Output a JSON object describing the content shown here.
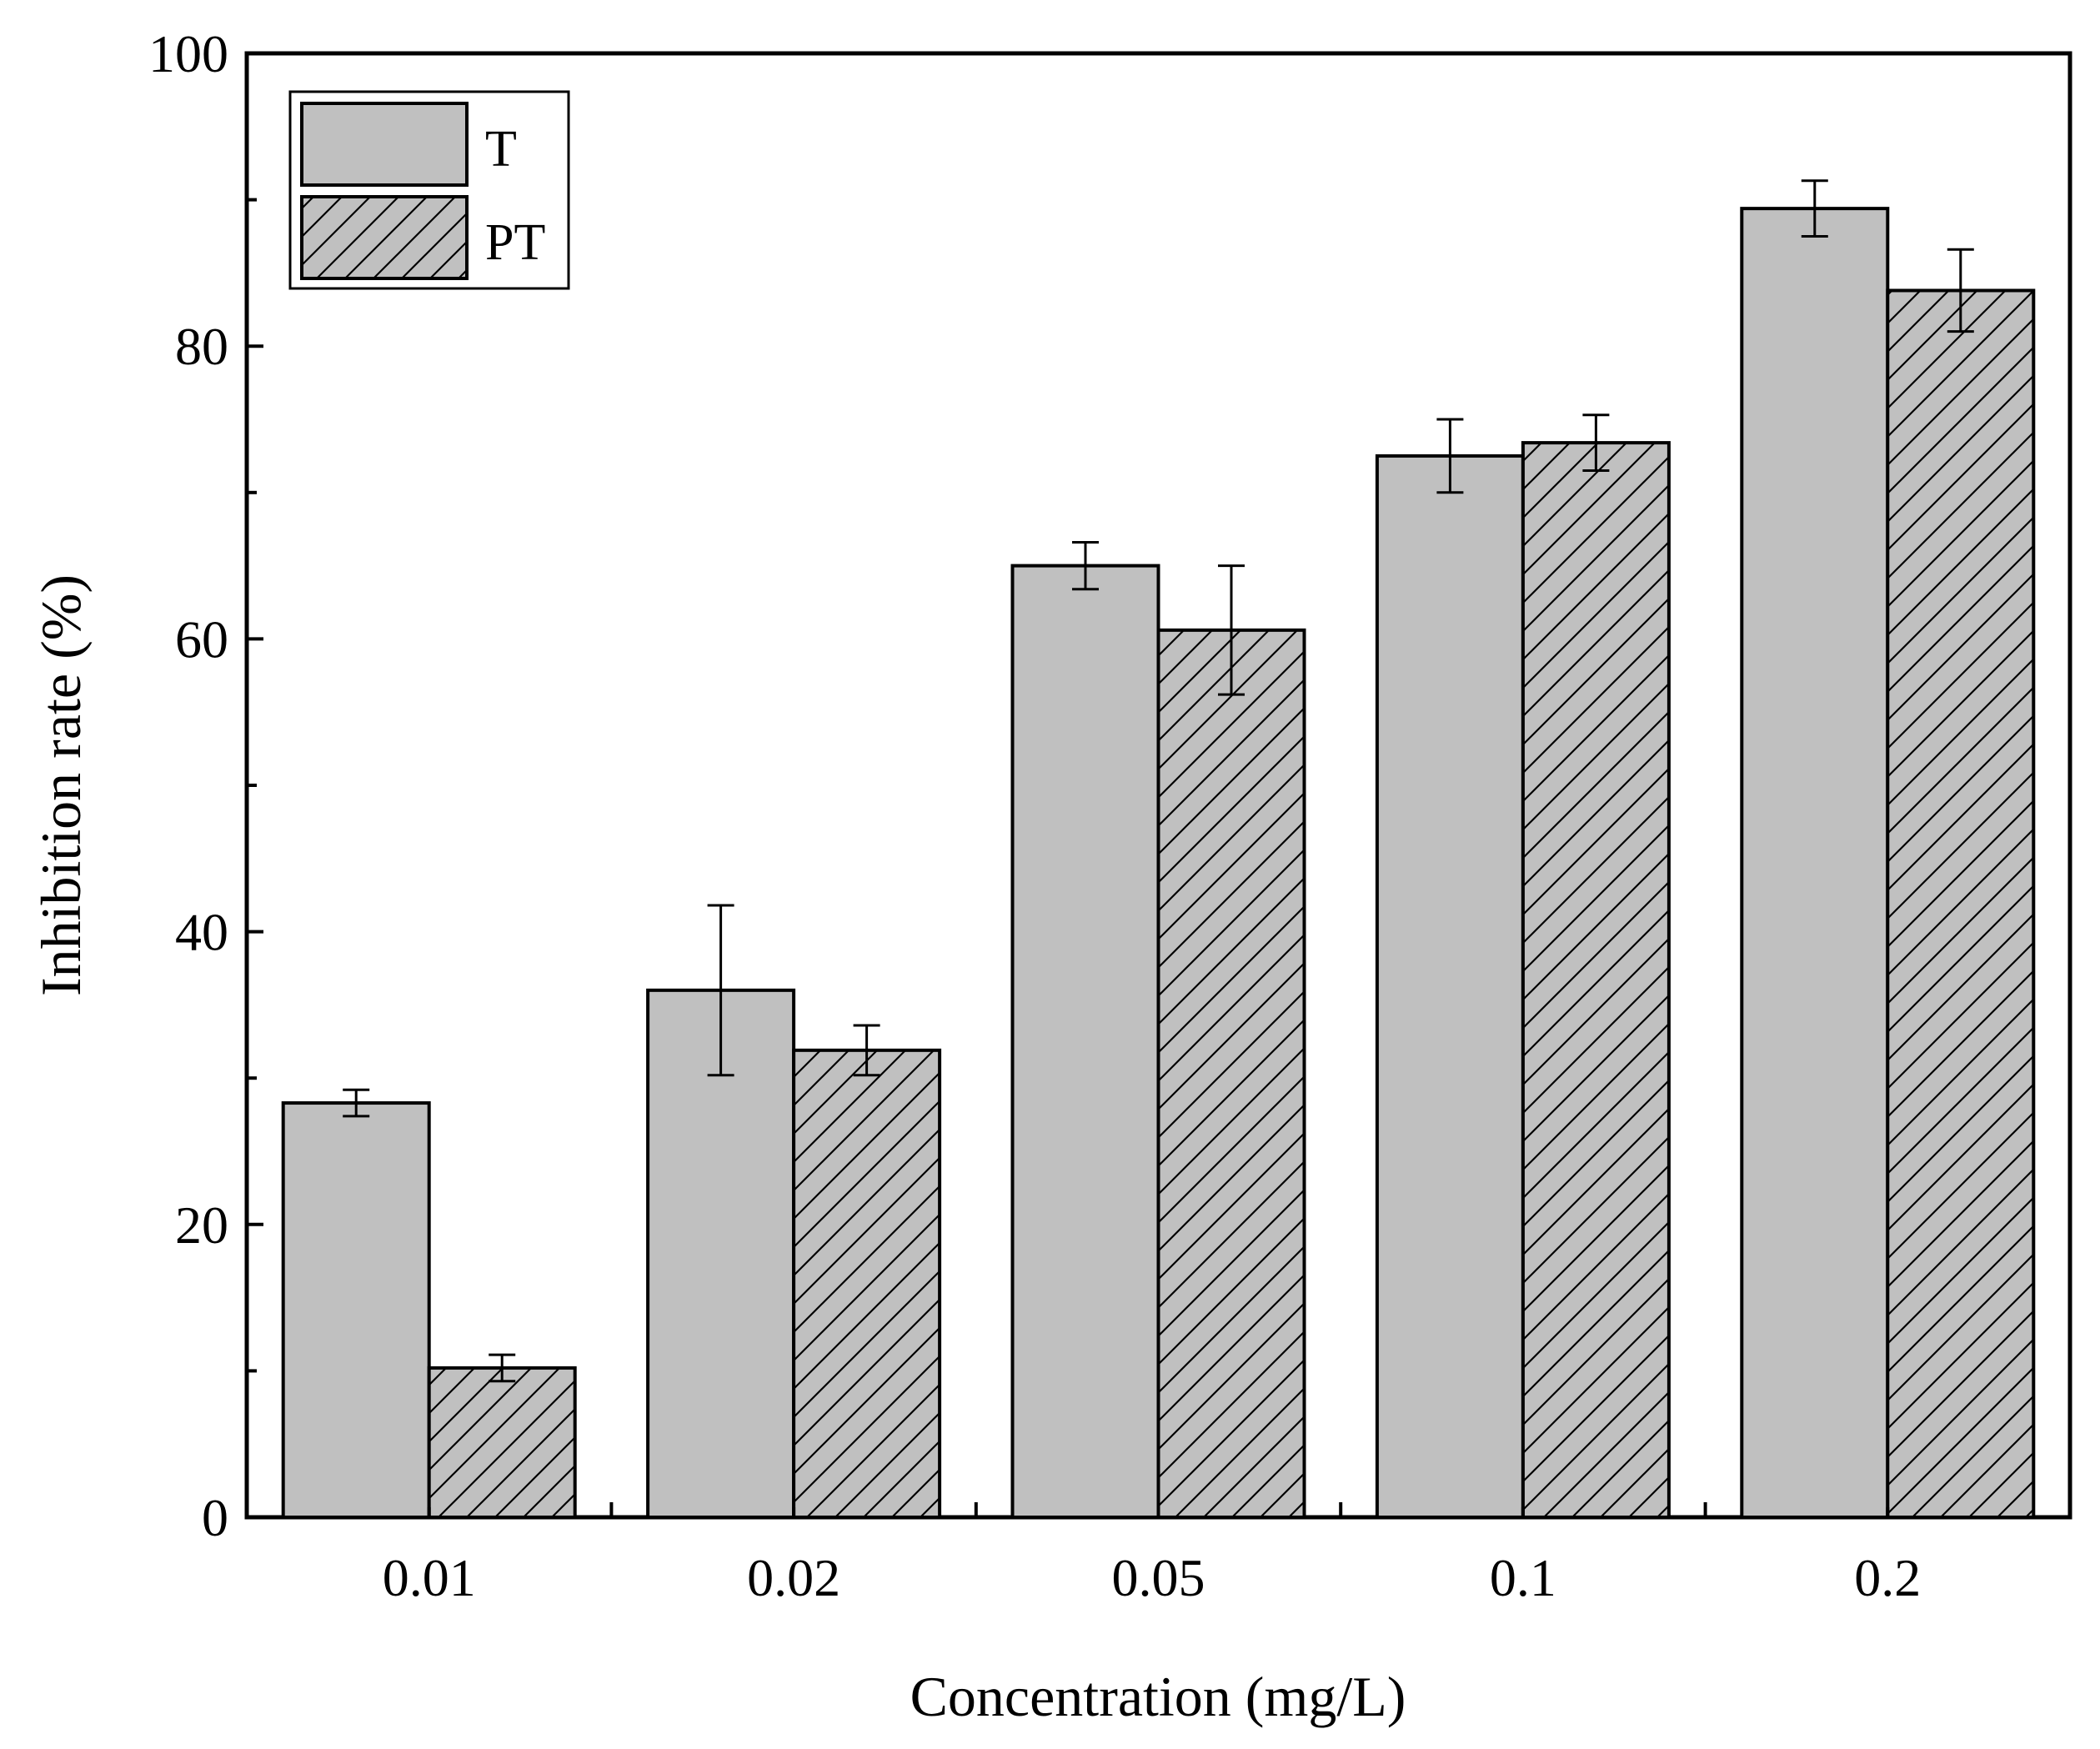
{
  "chart_data": {
    "type": "bar",
    "title": "",
    "xlabel": "Concentration (mg/L)",
    "ylabel": "Inhibition rate (%)",
    "categories": [
      "0.01",
      "0.02",
      "0.05",
      "0.1",
      "0.2"
    ],
    "ylim": [
      0,
      100
    ],
    "yticks": [
      0,
      20,
      40,
      60,
      80,
      100
    ],
    "yticks_minor": [
      10,
      30,
      50,
      70,
      90
    ],
    "grid": false,
    "legend_position": "top-left",
    "series": [
      {
        "name": "T",
        "pattern": "solid",
        "color": "#c0c0c0",
        "values": [
          28.3,
          36.0,
          65.0,
          72.5,
          89.4
        ],
        "errors": [
          0.9,
          5.8,
          1.6,
          2.5,
          1.9
        ]
      },
      {
        "name": "PT",
        "pattern": "hatched",
        "color": "#c0c0c0",
        "values": [
          10.2,
          31.9,
          60.6,
          73.4,
          83.8
        ],
        "errors": [
          0.9,
          1.7,
          4.4,
          1.9,
          2.8
        ]
      }
    ]
  }
}
